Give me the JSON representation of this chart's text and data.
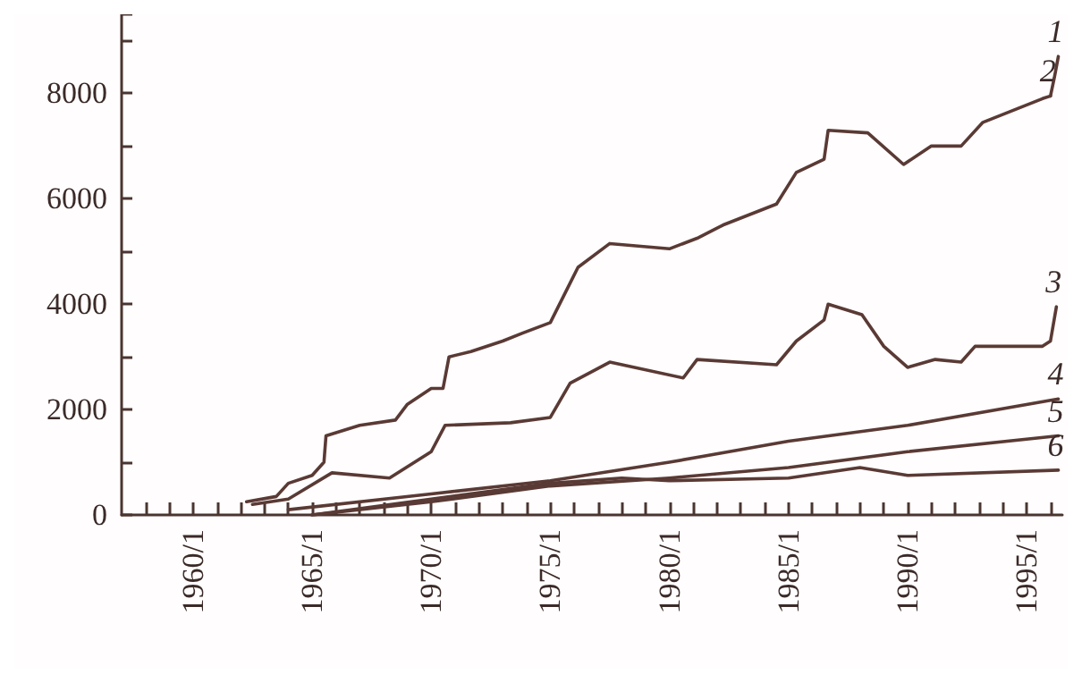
{
  "chart_data": {
    "type": "line",
    "marker": "none",
    "line_style": "solid",
    "grid": false,
    "legend": false,
    "xlim": [
      "1957-01",
      "1996-07"
    ],
    "ylim": [
      0,
      9500
    ],
    "xticks": [
      {
        "value": "1958-01",
        "label": null
      },
      {
        "value": "1959-01",
        "label": null
      },
      {
        "value": "1960-01",
        "label": "1960/1"
      },
      {
        "value": "1961-01",
        "label": null
      },
      {
        "value": "1962-01",
        "label": null
      },
      {
        "value": "1963-01",
        "label": null
      },
      {
        "value": "1964-01",
        "label": null
      },
      {
        "value": "1965-01",
        "label": "1965/1"
      },
      {
        "value": "1966-01",
        "label": null
      },
      {
        "value": "1967-01",
        "label": null
      },
      {
        "value": "1968-01",
        "label": null
      },
      {
        "value": "1969-01",
        "label": null
      },
      {
        "value": "1970-01",
        "label": "1970/1"
      },
      {
        "value": "1971-01",
        "label": null
      },
      {
        "value": "1972-01",
        "label": null
      },
      {
        "value": "1973-01",
        "label": null
      },
      {
        "value": "1974-01",
        "label": null
      },
      {
        "value": "1975-01",
        "label": "1975/1"
      },
      {
        "value": "1976-01",
        "label": null
      },
      {
        "value": "1977-01",
        "label": null
      },
      {
        "value": "1978-01",
        "label": null
      },
      {
        "value": "1979-01",
        "label": null
      },
      {
        "value": "1980-01",
        "label": "1980/1"
      },
      {
        "value": "1981-01",
        "label": null
      },
      {
        "value": "1982-01",
        "label": null
      },
      {
        "value": "1983-01",
        "label": null
      },
      {
        "value": "1984-01",
        "label": null
      },
      {
        "value": "1985-01",
        "label": "1985/1"
      },
      {
        "value": "1986-01",
        "label": null
      },
      {
        "value": "1987-01",
        "label": null
      },
      {
        "value": "1988-01",
        "label": null
      },
      {
        "value": "1989-01",
        "label": null
      },
      {
        "value": "1990-01",
        "label": "1990/1"
      },
      {
        "value": "1991-01",
        "label": null
      },
      {
        "value": "1992-01",
        "label": null
      },
      {
        "value": "1993-01",
        "label": null
      },
      {
        "value": "1994-01",
        "label": null
      },
      {
        "value": "1995-01",
        "label": "1995/1"
      },
      {
        "value": "1996-01",
        "label": null
      }
    ],
    "yticks": [
      0,
      {
        "value": 1000,
        "label": null
      },
      2000,
      {
        "value": 3000,
        "label": null
      },
      4000,
      {
        "value": 5000,
        "label": null
      },
      6000,
      {
        "value": 7000,
        "label": null
      },
      8000,
      {
        "value": 9000,
        "label": null
      }
    ],
    "series": [
      {
        "name": "1",
        "color": "#5a3a35",
        "x": [
          "1996-01",
          "1996-03",
          "1996-05"
        ],
        "values": [
          7950,
          8300,
          8700
        ]
      },
      {
        "name": "2",
        "color": "#5a3a35",
        "x": [
          "1962-04",
          "1963-07",
          "1964-01",
          "1965-01",
          "1965-07",
          "1965-08",
          "1967-01",
          "1968-07",
          "1969-01",
          "1970-01",
          "1970-07",
          "1970-10",
          "1971-09",
          "1973-01",
          "1973-11",
          "1975-01",
          "1975-11",
          "1976-03",
          "1977-07",
          "1980-01",
          "1981-03",
          "1982-04",
          "1984-07",
          "1985-05",
          "1986-07",
          "1986-09",
          "1988-05",
          "1989-11",
          "1991-01",
          "1992-04",
          "1993-03",
          "1995-09",
          "1996-01"
        ],
        "values": [
          250,
          350,
          600,
          750,
          1000,
          1500,
          1700,
          1800,
          2100,
          2400,
          2400,
          3000,
          3100,
          3300,
          3450,
          3650,
          4400,
          4700,
          5150,
          5050,
          5250,
          5500,
          5900,
          6500,
          6750,
          7300,
          7250,
          6650,
          7000,
          7000,
          7450,
          7900,
          7950
        ]
      },
      {
        "name": "3",
        "color": "#5a3a35",
        "x": [
          "1962-07",
          "1964-01",
          "1965-11",
          "1968-04",
          "1970-01",
          "1970-08",
          "1973-05",
          "1975-01",
          "1975-11",
          "1977-07",
          "1980-08",
          "1981-03",
          "1984-07",
          "1985-05",
          "1986-07",
          "1986-09",
          "1988-02",
          "1989-01",
          "1990-01",
          "1991-03",
          "1992-04",
          "1992-11",
          "1995-09",
          "1996-01",
          "1996-04"
        ],
        "values": [
          200,
          300,
          800,
          700,
          1200,
          1700,
          1750,
          1850,
          2500,
          2900,
          2600,
          2950,
          2850,
          3300,
          3700,
          4000,
          3800,
          3200,
          2800,
          2950,
          2900,
          3200,
          3200,
          3300,
          3950
        ]
      },
      {
        "name": "4",
        "color": "#5a3a35",
        "x": [
          "1964-01",
          "1970-01",
          "1975-01",
          "1980-01",
          "1985-01",
          "1990-01",
          "1996-05"
        ],
        "values": [
          100,
          400,
          650,
          1000,
          1400,
          1700,
          2200
        ]
      },
      {
        "name": "5",
        "color": "#5a3a35",
        "x": [
          "1965-01",
          "1970-01",
          "1975-01",
          "1980-01",
          "1985-01",
          "1990-01",
          "1996-05"
        ],
        "values": [
          0,
          250,
          550,
          700,
          900,
          1200,
          1500
        ]
      },
      {
        "name": "6",
        "color": "#5a3a35",
        "x": [
          "1965-01",
          "1970-01",
          "1975-01",
          "1978-01",
          "1980-01",
          "1985-01",
          "1988-01",
          "1990-01",
          "1996-05"
        ],
        "values": [
          0,
          300,
          600,
          700,
          650,
          700,
          900,
          750,
          850
        ]
      }
    ]
  }
}
